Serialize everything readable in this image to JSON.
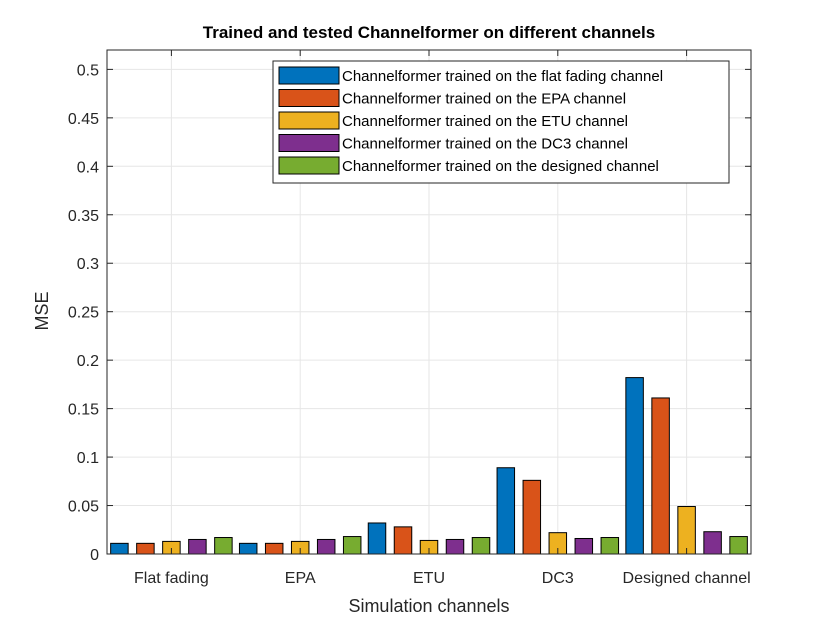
{
  "chart_data": {
    "type": "bar",
    "title": "Trained and tested Channelformer on different channels",
    "xlabel": "Simulation channels",
    "ylabel": "MSE",
    "ylim": [
      0,
      0.52
    ],
    "yticks": [
      "0",
      "0.05",
      "0.1",
      "0.15",
      "0.2",
      "0.25",
      "0.3",
      "0.35",
      "0.4",
      "0.45",
      "0.5"
    ],
    "ytick_values": [
      0,
      0.05,
      0.1,
      0.15,
      0.2,
      0.25,
      0.3,
      0.35,
      0.4,
      0.45,
      0.5
    ],
    "grid": true,
    "legend_position": "top-right",
    "categories": [
      "Flat fading",
      "EPA",
      "ETU",
      "DC3",
      "Designed channel"
    ],
    "series": [
      {
        "name": "Channelformer trained on the flat fading channel",
        "color": "#0072BD",
        "values": [
          0.011,
          0.011,
          0.032,
          0.089,
          0.182
        ]
      },
      {
        "name": "Channelformer trained on the EPA channel",
        "color": "#D95319",
        "values": [
          0.011,
          0.011,
          0.028,
          0.076,
          0.161
        ]
      },
      {
        "name": "Channelformer trained on the ETU channel",
        "color": "#EDB120",
        "values": [
          0.013,
          0.013,
          0.014,
          0.022,
          0.049
        ]
      },
      {
        "name": "Channelformer trained on the DC3 channel",
        "color": "#7E2F8E",
        "values": [
          0.015,
          0.015,
          0.015,
          0.016,
          0.023
        ]
      },
      {
        "name": "Channelformer trained on the designed channel",
        "color": "#77AC30",
        "values": [
          0.017,
          0.018,
          0.017,
          0.017,
          0.018
        ]
      }
    ]
  }
}
